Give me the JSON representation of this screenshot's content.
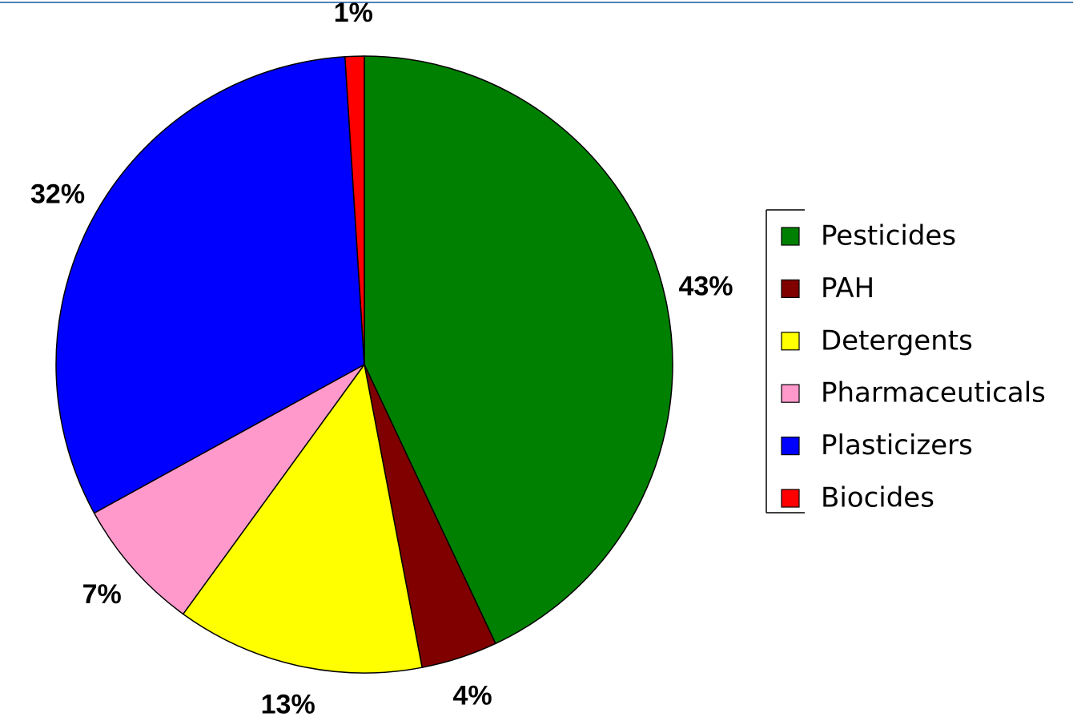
{
  "chart_data": {
    "type": "pie",
    "categories": [
      "Pesticides",
      "PAH",
      "Detergents",
      "Pharmaceuticals",
      "Plasticizers",
      "Biocides"
    ],
    "values": [
      43,
      4,
      13,
      7,
      32,
      1
    ],
    "value_labels": [
      "43%",
      "4%",
      "13%",
      "7%",
      "32%",
      "1%"
    ],
    "colors": [
      "#008000",
      "#800000",
      "#ffff00",
      "#ff99cc",
      "#0000ff",
      "#ff0000"
    ]
  }
}
